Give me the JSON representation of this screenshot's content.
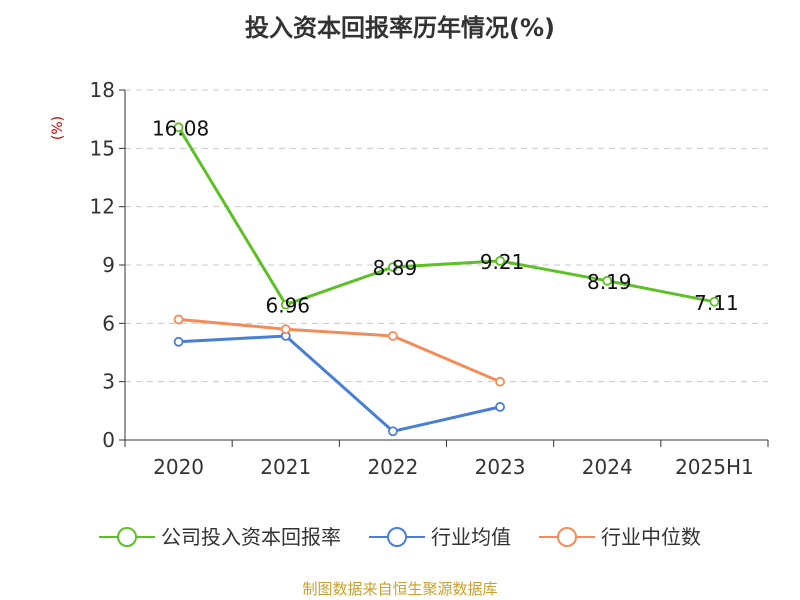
{
  "chart_data": {
    "type": "line",
    "title": "投入资本回报率历年情况(%)",
    "ylabel": "(%)",
    "xlabel": "",
    "categories": [
      "2020",
      "2021",
      "2022",
      "2023",
      "2024",
      "2025H1"
    ],
    "ylim": [
      0,
      18
    ],
    "yticks": [
      0,
      3,
      6,
      9,
      12,
      15,
      18
    ],
    "grid": true,
    "legend_position": "bottom",
    "series": [
      {
        "name": "公司投入资本回报率",
        "color": "#5cc026",
        "values": [
          16.08,
          6.96,
          8.89,
          9.21,
          8.19,
          7.11
        ],
        "labels": [
          "16.08",
          "6.96",
          "8.89",
          "9.21",
          "8.19",
          "7.11"
        ]
      },
      {
        "name": "行业均值",
        "color": "#4a7fd6",
        "values": [
          5.05,
          5.35,
          0.45,
          1.7,
          null,
          null
        ]
      },
      {
        "name": "行业中位数",
        "color": "#f28d5a",
        "values": [
          6.2,
          5.7,
          5.35,
          3.0,
          null,
          null
        ]
      }
    ]
  },
  "source": "制图数据来自恒生聚源数据库"
}
